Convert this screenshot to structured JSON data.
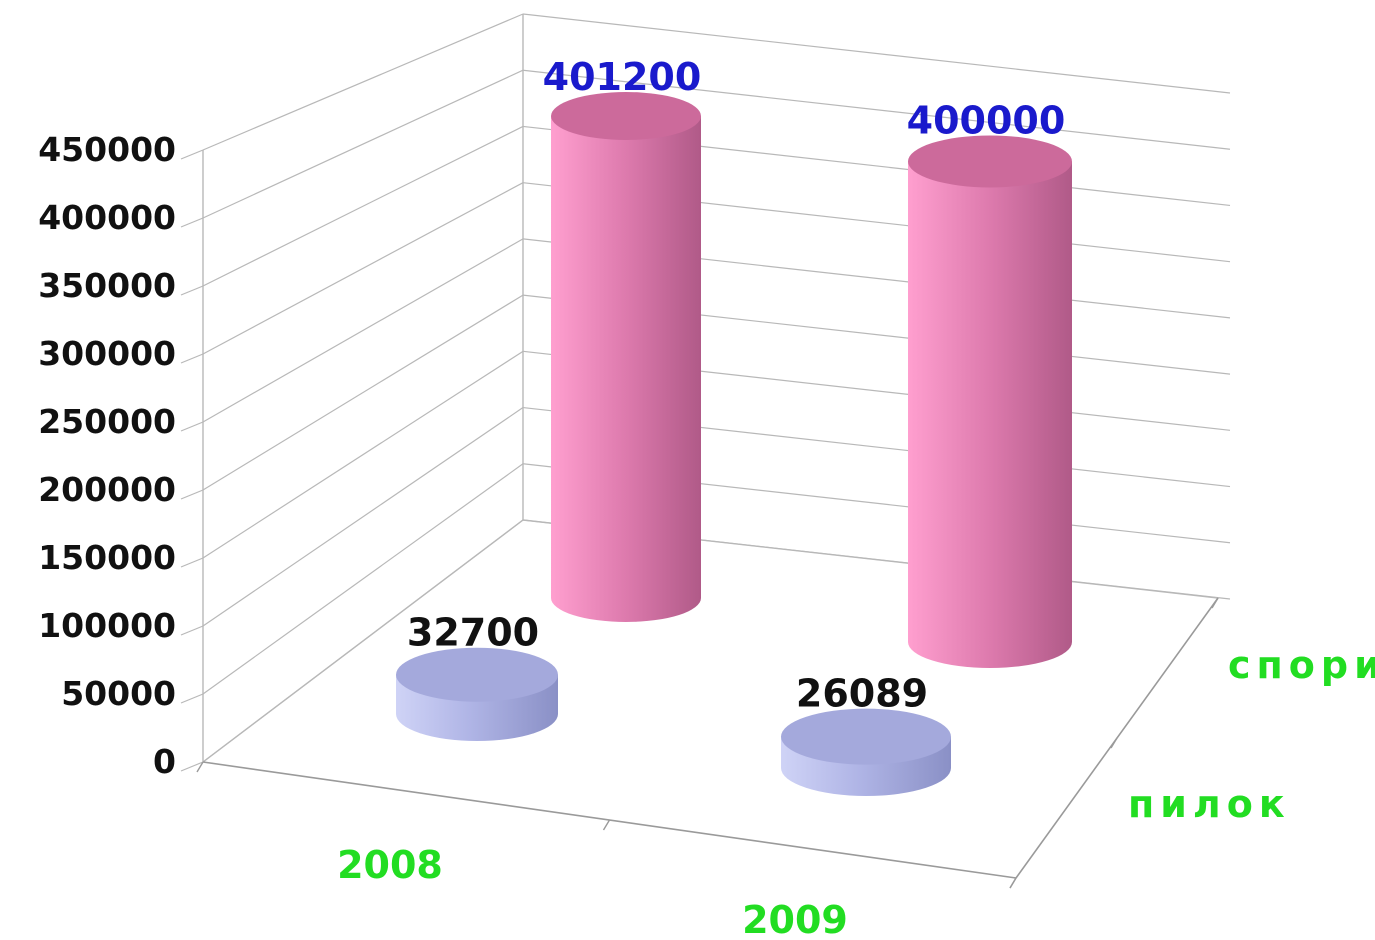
{
  "chart_data": {
    "type": "bar",
    "subtype": "3d-cylinder",
    "title": "",
    "xlabel": "",
    "ylabel": "",
    "categories": [
      "2008",
      "2009"
    ],
    "series": [
      {
        "name": "пилок",
        "values": [
          32700,
          26089
        ]
      },
      {
        "name": "спори",
        "values": [
          401200,
          400000
        ]
      }
    ],
    "ylim": [
      0,
      450000
    ],
    "yticks": [
      "0",
      "50000",
      "100000",
      "150000",
      "200000",
      "250000",
      "300000",
      "350000",
      "400000",
      "450000"
    ],
    "data_labels": [
      [
        "32700",
        "26089"
      ],
      [
        "401200",
        "400000"
      ]
    ],
    "grid": true,
    "legend": "none",
    "colors": {
      "series_front": "#a9aee0",
      "series_back": "#e47aae",
      "back_labels": "#1a1acc",
      "front_labels": "#111111",
      "category_labels": "#22dd22",
      "tick_labels": "#111111",
      "grid": "#b8b8b8"
    }
  }
}
